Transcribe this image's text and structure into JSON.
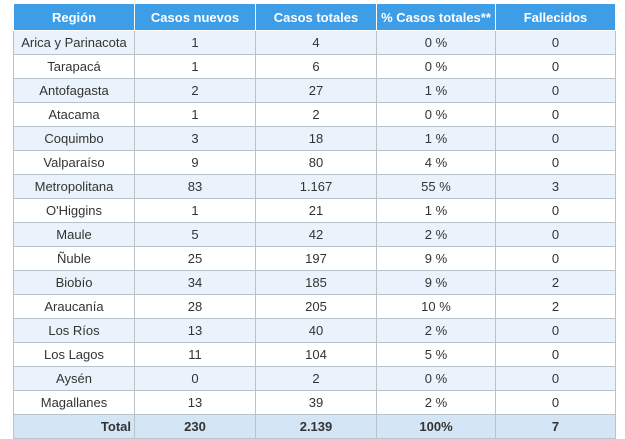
{
  "table": {
    "headers": [
      "Región",
      "Casos nuevos",
      "Casos totales",
      "% Casos totales**",
      "Fallecidos"
    ],
    "rows": [
      [
        "Arica y Parinacota",
        "1",
        "4",
        "0 %",
        "0"
      ],
      [
        "Tarapacá",
        "1",
        "6",
        "0 %",
        "0"
      ],
      [
        "Antofagasta",
        "2",
        "27",
        "1 %",
        "0"
      ],
      [
        "Atacama",
        "1",
        "2",
        "0 %",
        "0"
      ],
      [
        "Coquimbo",
        "3",
        "18",
        "1 %",
        "0"
      ],
      [
        "Valparaíso",
        "9",
        "80",
        "4 %",
        "0"
      ],
      [
        "Metropolitana",
        "83",
        "1.167",
        "55 %",
        "3"
      ],
      [
        "O'Higgins",
        "1",
        "21",
        "1 %",
        "0"
      ],
      [
        "Maule",
        "5",
        "42",
        "2 %",
        "0"
      ],
      [
        "Ñuble",
        "25",
        "197",
        "9 %",
        "0"
      ],
      [
        "Biobío",
        "34",
        "185",
        "9 %",
        "2"
      ],
      [
        "Araucanía",
        "28",
        "205",
        "10 %",
        "2"
      ],
      [
        "Los Ríos",
        "13",
        "40",
        "2 %",
        "0"
      ],
      [
        "Los Lagos",
        "11",
        "104",
        "5 %",
        "0"
      ],
      [
        "Aysén",
        "0",
        "2",
        "0 %",
        "0"
      ],
      [
        "Magallanes",
        "13",
        "39",
        "2 %",
        "0"
      ]
    ],
    "totals": [
      "Total",
      "230",
      "2.139",
      "100%",
      "7"
    ]
  },
  "colors": {
    "header_bg": "#3d9ee7",
    "row_alt_bg": "#eaf3fb",
    "total_bg": "#d4e6f6"
  }
}
